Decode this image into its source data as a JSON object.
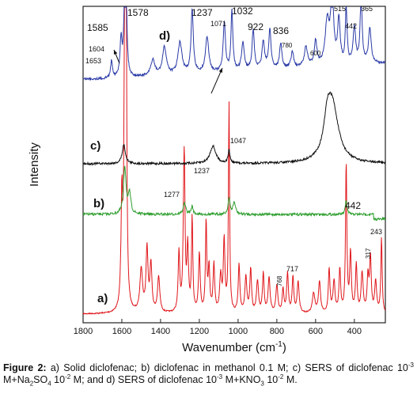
{
  "chart_data": {
    "type": "line",
    "xlabel": "Wavenumber (cm",
    "xlabel_sup": "-1",
    "xlabel_end": ")",
    "ylabel": "Intensity",
    "xlim": [
      1800,
      240
    ],
    "x_reversed": true,
    "x_ticks": [
      1800,
      1600,
      1400,
      1200,
      1000,
      800,
      600,
      400
    ],
    "y_ticks_shown": false,
    "series": [
      {
        "name": "d)",
        "color": "#2a3aa6",
        "peaks": [
          1653,
          1604,
          1585,
          1578,
          1237,
          1071,
          1032,
          922,
          836,
          780,
          600,
          515,
          442,
          365
        ]
      },
      {
        "name": "c)",
        "color": "#111111",
        "peaks": [
          1585,
          1130,
          1047,
          515
        ]
      },
      {
        "name": "b)",
        "color": "#2f9e2f",
        "peaks": [
          1585,
          1277,
          1237,
          1047,
          442,
          243
        ]
      },
      {
        "name": "a)",
        "color": "#e0161b",
        "peaks": [
          1585,
          1578,
          1277,
          1237,
          1047,
          768,
          717,
          442,
          317
        ]
      }
    ],
    "annotations": [
      {
        "text": "1585",
        "series": "d)"
      },
      {
        "text": "1578",
        "series": "d)"
      },
      {
        "text": "1604",
        "series": "d)"
      },
      {
        "text": "1653",
        "series": "d)"
      },
      {
        "text": "1237",
        "series": "d)"
      },
      {
        "text": "1071",
        "series": "d)"
      },
      {
        "text": "1032",
        "series": "d)"
      },
      {
        "text": "922",
        "series": "d)"
      },
      {
        "text": "836",
        "series": "d)"
      },
      {
        "text": "780",
        "series": "d)"
      },
      {
        "text": "600",
        "series": "d)"
      },
      {
        "text": "515",
        "series": "d)"
      },
      {
        "text": "442",
        "series": "d)"
      },
      {
        "text": "365",
        "series": "d)"
      },
      {
        "text": "1047",
        "series": "c)"
      },
      {
        "text": "1277",
        "series": "b)"
      },
      {
        "text": "1237",
        "series": "b)"
      },
      {
        "text": "442",
        "series": "b)"
      },
      {
        "text": "243",
        "series": "b)"
      },
      {
        "text": "768",
        "series": "a)"
      },
      {
        "text": "717",
        "series": "a)"
      },
      {
        "text": "317",
        "series": "a)"
      }
    ]
  },
  "caption": {
    "label": "Figure 2:",
    "p1": " a) Solid diclofenac; b) diclofenac in methanol 0.1 M; c) SERS of diclofenac 10",
    "sup1": "-3",
    "p2": " M+Na",
    "sub1": "2",
    "p3": "SO",
    "sub2": "4",
    "p4": " 10",
    "sup2": "-2",
    "p5": " M; and d) SERS of diclofenac 10",
    "sup3": "-3",
    "p6": " M+KNO",
    "sub3": "3",
    "p7": " 10",
    "sup4": "-2",
    "p8": " M."
  }
}
